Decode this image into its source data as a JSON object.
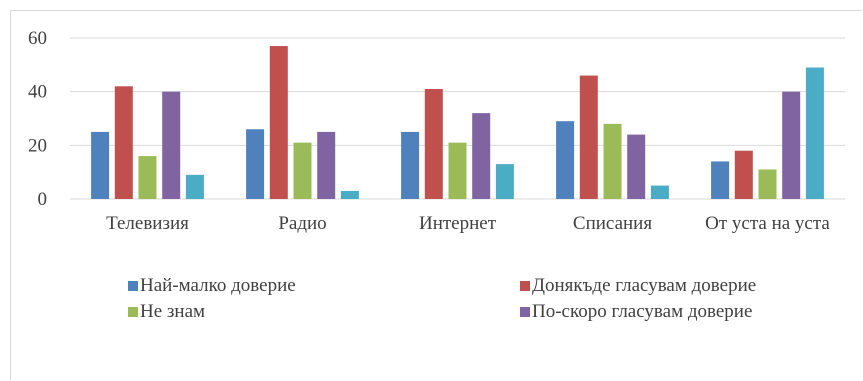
{
  "chart_data": {
    "type": "bar",
    "categories": [
      "Телевизия",
      "Радио",
      "Интернет",
      "Списания",
      "От уста на уста"
    ],
    "series": [
      {
        "name": "Най-малко доверие",
        "color": "#4f81bd",
        "values": [
          25,
          26,
          25,
          29,
          14
        ]
      },
      {
        "name": "Донякъде гласувам доверие",
        "color": "#c0504d",
        "values": [
          42,
          57,
          41,
          46,
          18
        ]
      },
      {
        "name": "Не знам",
        "color": "#9bbb59",
        "values": [
          16,
          21,
          21,
          28,
          11
        ]
      },
      {
        "name": "По-скоро гласувам доверие",
        "color": "#8064a2",
        "values": [
          40,
          25,
          32,
          24,
          40
        ]
      },
      {
        "name": "",
        "color": "#4bacc6",
        "values": [
          9,
          3,
          13,
          5,
          49
        ]
      }
    ],
    "y_ticks": [
      0,
      20,
      40,
      60
    ],
    "ylim": [
      0,
      60
    ],
    "grid": true,
    "gridline_color": "#d9d9d9",
    "legend_position": "bottom",
    "title": "",
    "xlabel": "",
    "ylabel": ""
  }
}
